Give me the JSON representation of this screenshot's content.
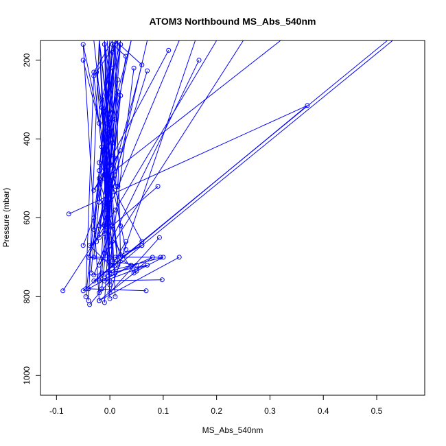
{
  "chart_data": {
    "type": "line",
    "title": "ATOM3 Northbound MS_Abs_540nm",
    "xlabel": "MS_Abs_540nm",
    "ylabel": "Pressure (mbar)",
    "xlim": [
      -0.13,
      0.59
    ],
    "ylim": [
      1050,
      150
    ],
    "y_reversed": true,
    "x_ticks": [
      "-0.1",
      "0.0",
      "0.1",
      "0.2",
      "0.3",
      "0.4",
      "0.5"
    ],
    "y_ticks": [
      "200",
      "400",
      "600",
      "800",
      "1000"
    ],
    "grid": false,
    "legend": "none",
    "line_color": "#0000ff",
    "series": [
      {
        "x": [
          -0.05,
          0.37,
          -0.077
        ],
        "y": [
          785,
          315,
          590
        ]
      },
      {
        "x": [
          0.13,
          -0.02,
          0.05,
          0.1,
          -0.03,
          0.005,
          -0.01
        ],
        "y": [
          700,
          810,
          735,
          700,
          745,
          620,
          150
        ]
      },
      {
        "x": [
          0.068,
          -0.04,
          0.04,
          -0.008,
          0.01,
          0.06,
          0.53
        ],
        "y": [
          785,
          780,
          720,
          -1,
          700,
          670,
          150
        ]
      },
      {
        "x": [
          0.098,
          -0.03,
          0.52
        ],
        "y": [
          757,
          760,
          150
        ]
      },
      {
        "x": [
          -0.088,
          0.01,
          0.2
        ],
        "y": [
          785,
          580,
          150
        ]
      },
      {
        "x": [
          0.11,
          -0.03,
          0.02,
          -0.01,
          0.32
        ],
        "y": [
          175,
          530,
          430,
          500,
          150
        ]
      },
      {
        "x": [
          0.167,
          -0.02,
          0.25
        ],
        "y": [
          200,
          720,
          150
        ]
      },
      {
        "x": [
          0.07,
          -0.02,
          0.06,
          0.01
        ],
        "y": [
          227,
          620,
          212,
          150
        ]
      },
      {
        "x": [
          0.093,
          0.0,
          0.16
        ],
        "y": [
          650,
          790,
          150
        ]
      },
      {
        "x": [
          0.095,
          -0.04,
          0.13
        ],
        "y": [
          700,
          700,
          150
        ]
      },
      {
        "x": [
          0.09,
          -0.038,
          0.0,
          0.045
        ],
        "y": [
          520,
          670,
          720,
          220
        ]
      },
      {
        "x": [
          -0.05,
          -0.03,
          0.04
        ],
        "y": [
          670,
          600,
          150
        ]
      },
      {
        "x": [
          -0.05,
          -0.02,
          0.01
        ],
        "y": [
          200,
          360,
          150
        ]
      },
      {
        "x": [
          0.03,
          -0.05,
          -0.02
        ],
        "y": [
          680,
          160,
          810
        ]
      },
      {
        "x": [
          -0.045,
          0.005,
          0.03,
          -0.01,
          -0.04,
          0.05
        ],
        "y": [
          800,
          160,
          190,
          560,
          700,
          720
        ]
      },
      {
        "x": [
          -0.038,
          0.0,
          -0.02,
          0.02,
          0.01
        ],
        "y": [
          820,
          760,
          500,
          700,
          150
        ]
      },
      {
        "x": [
          -0.01,
          0.015,
          -0.005,
          0.02,
          -0.015
        ],
        "y": [
          815,
          280,
          360,
          160,
          740
        ]
      },
      {
        "x": [
          -0.04,
          -0.02,
          0.0,
          -0.025,
          0.01
        ],
        "y": [
          810,
          150,
          670,
          230,
          520
        ]
      },
      {
        "x": [
          -0.045,
          -0.03,
          0.005,
          -0.015,
          0.0
        ],
        "y": [
          780,
          230,
          150,
          420,
          700
        ]
      },
      {
        "x": [
          -0.02,
          0.01,
          -0.01,
          0.005,
          -0.03
        ],
        "y": [
          790,
          150,
          490,
          220,
          630
        ]
      },
      {
        "x": [
          0.0,
          -0.015,
          0.01,
          -0.005,
          0.02,
          -0.01
        ],
        "y": [
          805,
          300,
          160,
          580,
          290,
          690
        ]
      },
      {
        "x": [
          -0.035,
          0.0,
          -0.01,
          0.015,
          -0.02
        ],
        "y": [
          740,
          150,
          640,
          250,
          560
        ]
      },
      {
        "x": [
          -0.03,
          0.005,
          -0.02,
          0.01,
          -0.01
        ],
        "y": [
          700,
          180,
          480,
          350,
          150
        ]
      },
      {
        "x": [
          0.02,
          -0.02,
          0.005,
          -0.015
        ],
        "y": [
          620,
          150,
          710,
          320
        ]
      },
      {
        "x": [
          0.01,
          -0.03,
          0.015,
          -0.005
        ],
        "y": [
          740,
          240,
          150,
          600
        ]
      },
      {
        "x": [
          -0.025,
          0.005,
          -0.01,
          0.0
        ],
        "y": [
          660,
          410,
          150,
          770
        ]
      },
      {
        "x": [
          0.005,
          -0.01,
          0.02,
          -0.02
        ],
        "y": [
          720,
          330,
          150,
          650
        ]
      },
      {
        "x": [
          -0.015,
          0.01,
          -0.005
        ],
        "y": [
          780,
          450,
          150
        ]
      },
      {
        "x": [
          0.015,
          -0.02,
          0.0
        ],
        "y": [
          520,
          150,
          740
        ]
      },
      {
        "x": [
          -0.005,
          0.015,
          -0.03
        ],
        "y": [
          380,
          720,
          150
        ]
      },
      {
        "x": [
          0.0,
          -0.01,
          0.01
        ],
        "y": [
          550,
          160,
          800
        ]
      },
      {
        "x": [
          0.06,
          -0.02,
          0.04
        ],
        "y": [
          660,
          460,
          150
        ]
      },
      {
        "x": [
          0.045,
          -0.01,
          0.07
        ],
        "y": [
          740,
          620,
          150
        ]
      },
      {
        "x": [
          0.02,
          0.06,
          -0.01
        ],
        "y": [
          700,
          670,
          750
        ]
      },
      {
        "x": [
          0.0,
          0.07,
          -0.01
        ],
        "y": [
          740,
          720,
          760
        ]
      },
      {
        "x": [
          0.05,
          0.08,
          -0.02
        ],
        "y": [
          730,
          700,
          760
        ]
      },
      {
        "x": [
          -0.02,
          0.005,
          0.03
        ],
        "y": [
          750,
          720,
          660
        ]
      }
    ]
  }
}
